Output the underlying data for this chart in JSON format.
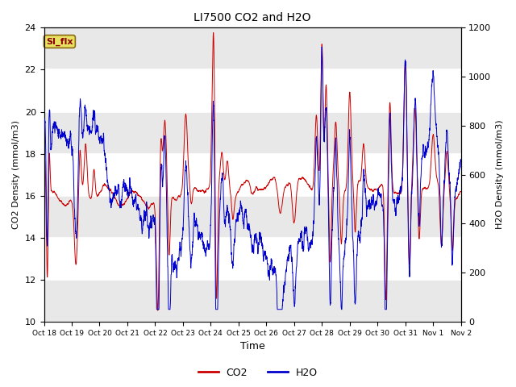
{
  "title": "LI7500 CO2 and H2O",
  "xlabel": "Time",
  "ylabel_left": "CO2 Density (mmol/m3)",
  "ylabel_right": "H2O Density (mmol/m3)",
  "ylim_left": [
    10,
    24
  ],
  "ylim_right": [
    0,
    1200
  ],
  "yticks_left": [
    10,
    12,
    14,
    16,
    18,
    20,
    22,
    24
  ],
  "yticks_right": [
    0,
    200,
    400,
    600,
    800,
    1000,
    1200
  ],
  "xtick_labels": [
    "Oct 18",
    "Oct 19",
    "Oct 20",
    "Oct 21",
    "Oct 22",
    "Oct 23",
    "Oct 24",
    "Oct 25",
    "Oct 26",
    "Oct 27",
    "Oct 28",
    "Oct 29",
    "Oct 30",
    "Oct 31",
    "Nov 1",
    "Nov 2"
  ],
  "co2_color": "#cc0000",
  "h2o_color": "#0000cc",
  "background_color": "#ffffff",
  "plot_bg_color": "#ffffff",
  "annotation_text": "SI_flx",
  "legend_co2": "CO2",
  "legend_h2o": "H2O",
  "grid_color": "#d8d8d8",
  "n_days": 15,
  "n_points": 3000,
  "seed": 42
}
